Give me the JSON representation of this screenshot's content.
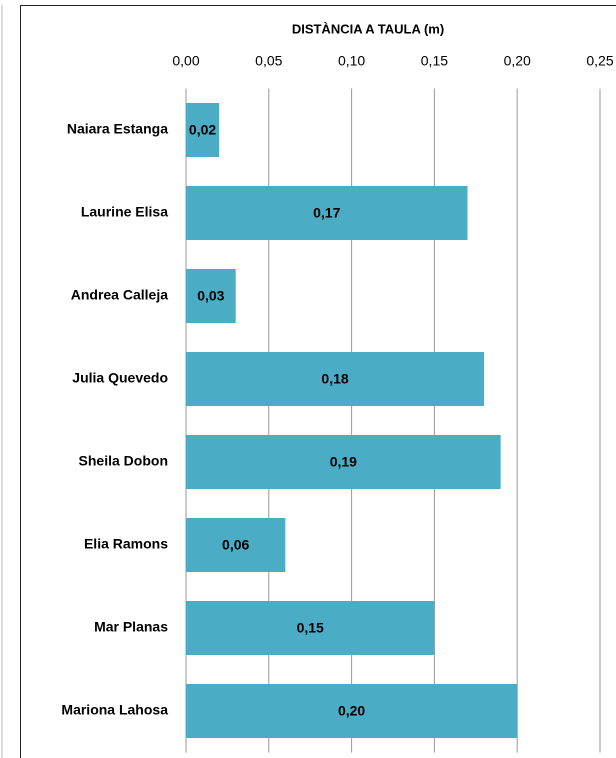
{
  "chart_data": {
    "type": "bar",
    "orientation": "horizontal",
    "title": "DISTÀNCIA A TAULA (m)",
    "categories": [
      "Naiara Estanga",
      "Laurine Elisa",
      "Andrea Calleja",
      "Julia Quevedo",
      "Sheila Dobon",
      "Elia Ramons",
      "Mar Planas",
      "Mariona Lahosa"
    ],
    "values": [
      0.02,
      0.17,
      0.03,
      0.18,
      0.19,
      0.06,
      0.15,
      0.2
    ],
    "value_labels": [
      "0,02",
      "0,17",
      "0,03",
      "0,18",
      "0,19",
      "0,06",
      "0,15",
      "0,20"
    ],
    "color": "#4bacc6",
    "xlim": [
      0,
      0.25
    ],
    "xticks": [
      {
        "value": 0,
        "label": "0,00"
      },
      {
        "value": 0.05,
        "label": "0,05"
      },
      {
        "value": 0.1,
        "label": "0,10"
      },
      {
        "value": 0.15,
        "label": "0,15"
      },
      {
        "value": 0.2,
        "label": "0,20"
      },
      {
        "value": 0.25,
        "label": "0,25"
      }
    ],
    "grid": true
  }
}
